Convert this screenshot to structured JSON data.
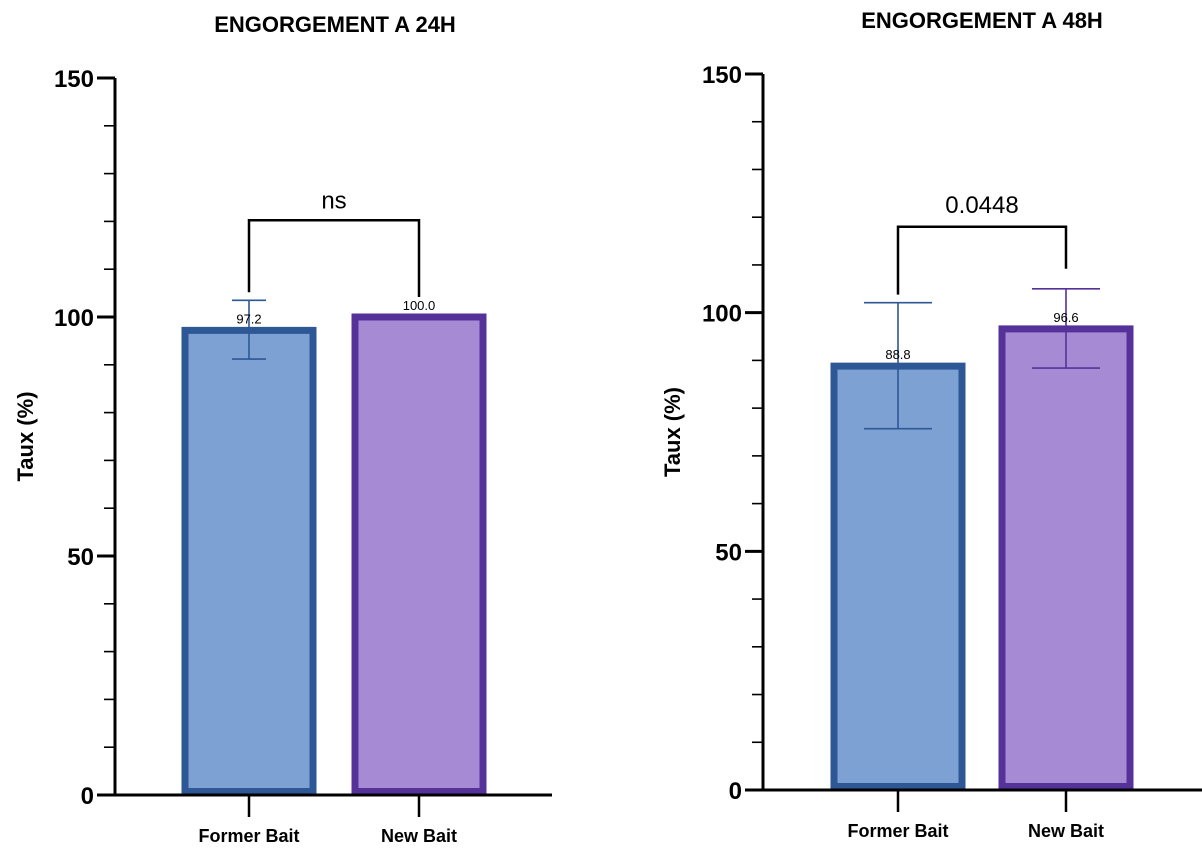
{
  "chart_data": [
    {
      "type": "bar",
      "title": "ENGORGEMENT A 24H",
      "ylabel": "Taux (%)",
      "ylim": [
        0,
        150
      ],
      "yticks": [
        0,
        50,
        100,
        150
      ],
      "categories": [
        "Former Bait",
        "New Bait"
      ],
      "values": [
        97.2,
        100.0
      ],
      "value_labels": [
        "97.2",
        "100.0"
      ],
      "error_low": [
        91.2,
        100.0
      ],
      "error_high": [
        103.5,
        100.0
      ],
      "significance": {
        "label": "ns",
        "from": 0,
        "to": 1
      },
      "colors": {
        "fill": [
          "#7ea1d4",
          "#a68ad4"
        ],
        "stroke": [
          "#2e5796",
          "#55329a"
        ]
      }
    },
    {
      "type": "bar",
      "title": "ENGORGEMENT A 48H",
      "ylabel": "Taux (%)",
      "ylim": [
        0,
        150
      ],
      "yticks": [
        0,
        50,
        100,
        150
      ],
      "categories": [
        "Former Bait",
        "New Bait"
      ],
      "values": [
        88.8,
        96.6
      ],
      "value_labels": [
        "88.8",
        "96.6"
      ],
      "error_low": [
        75.7,
        88.4
      ],
      "error_high": [
        102.1,
        105.0
      ],
      "significance": {
        "label": "0.0448",
        "from": 0,
        "to": 1
      },
      "colors": {
        "fill": [
          "#7ea1d4",
          "#a68ad4"
        ],
        "stroke": [
          "#2e5796",
          "#55329a"
        ]
      }
    }
  ]
}
